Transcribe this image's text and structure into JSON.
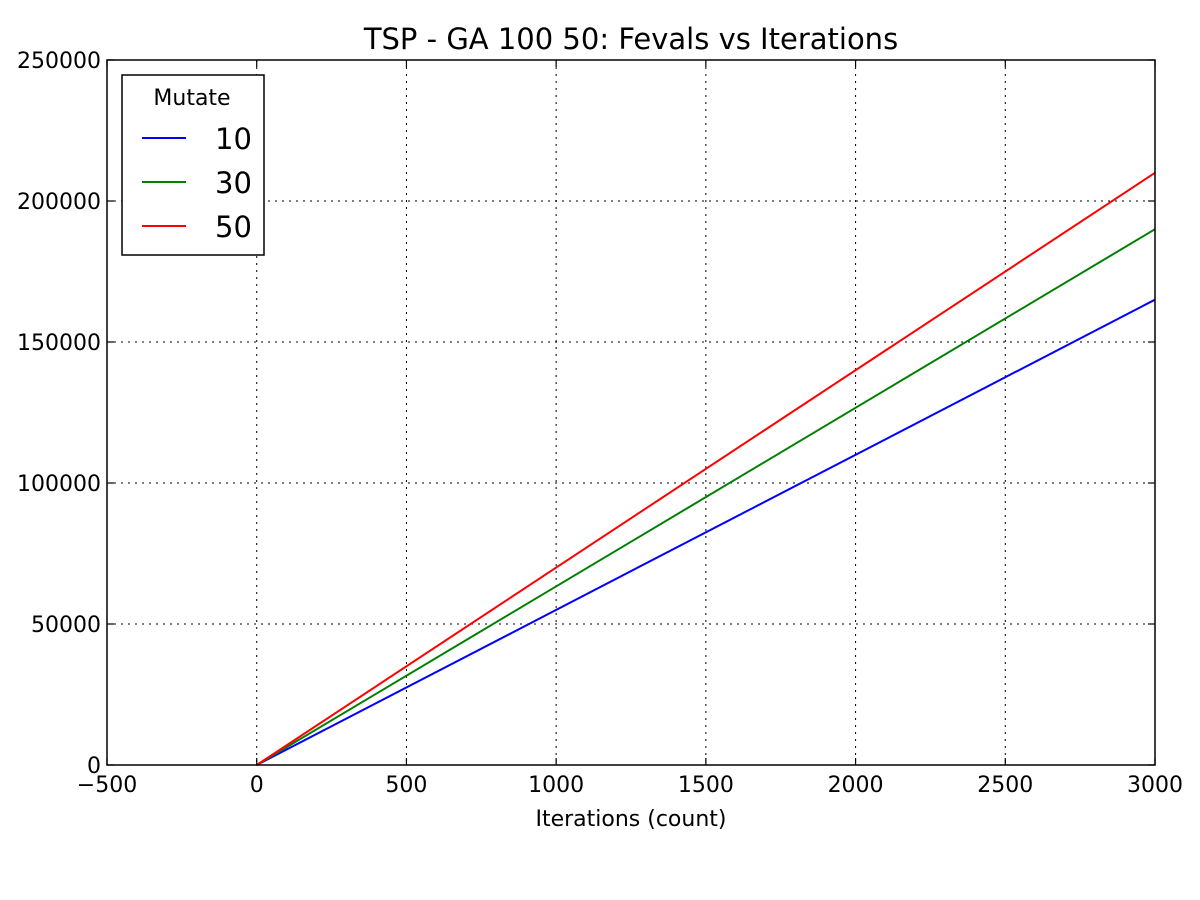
{
  "chart_data": {
    "type": "line",
    "title": "TSP - GA 100 50: Fevals vs Iterations",
    "xlabel": "Iterations (count)",
    "ylabel": "",
    "xlim": [
      -500,
      3000
    ],
    "ylim": [
      0,
      250000
    ],
    "xticks": [
      -500,
      0,
      500,
      1000,
      1500,
      2000,
      2500,
      3000
    ],
    "xtick_labels": [
      "−500",
      "0",
      "500",
      "1000",
      "1500",
      "2000",
      "2500",
      "3000"
    ],
    "yticks": [
      0,
      50000,
      100000,
      150000,
      200000,
      250000
    ],
    "ytick_labels": [
      "0",
      "50000",
      "100000",
      "150000",
      "200000",
      "250000"
    ],
    "grid": true,
    "legend": {
      "title": "Mutate",
      "placement": "top-left"
    },
    "series": [
      {
        "name": "10",
        "color": "#0000ff",
        "x": [
          0,
          3000
        ],
        "y": [
          0,
          165000
        ]
      },
      {
        "name": "30",
        "color": "#008000",
        "x": [
          0,
          3000
        ],
        "y": [
          0,
          190000
        ]
      },
      {
        "name": "50",
        "color": "#ff0000",
        "x": [
          0,
          3000
        ],
        "y": [
          0,
          210000
        ]
      }
    ]
  }
}
